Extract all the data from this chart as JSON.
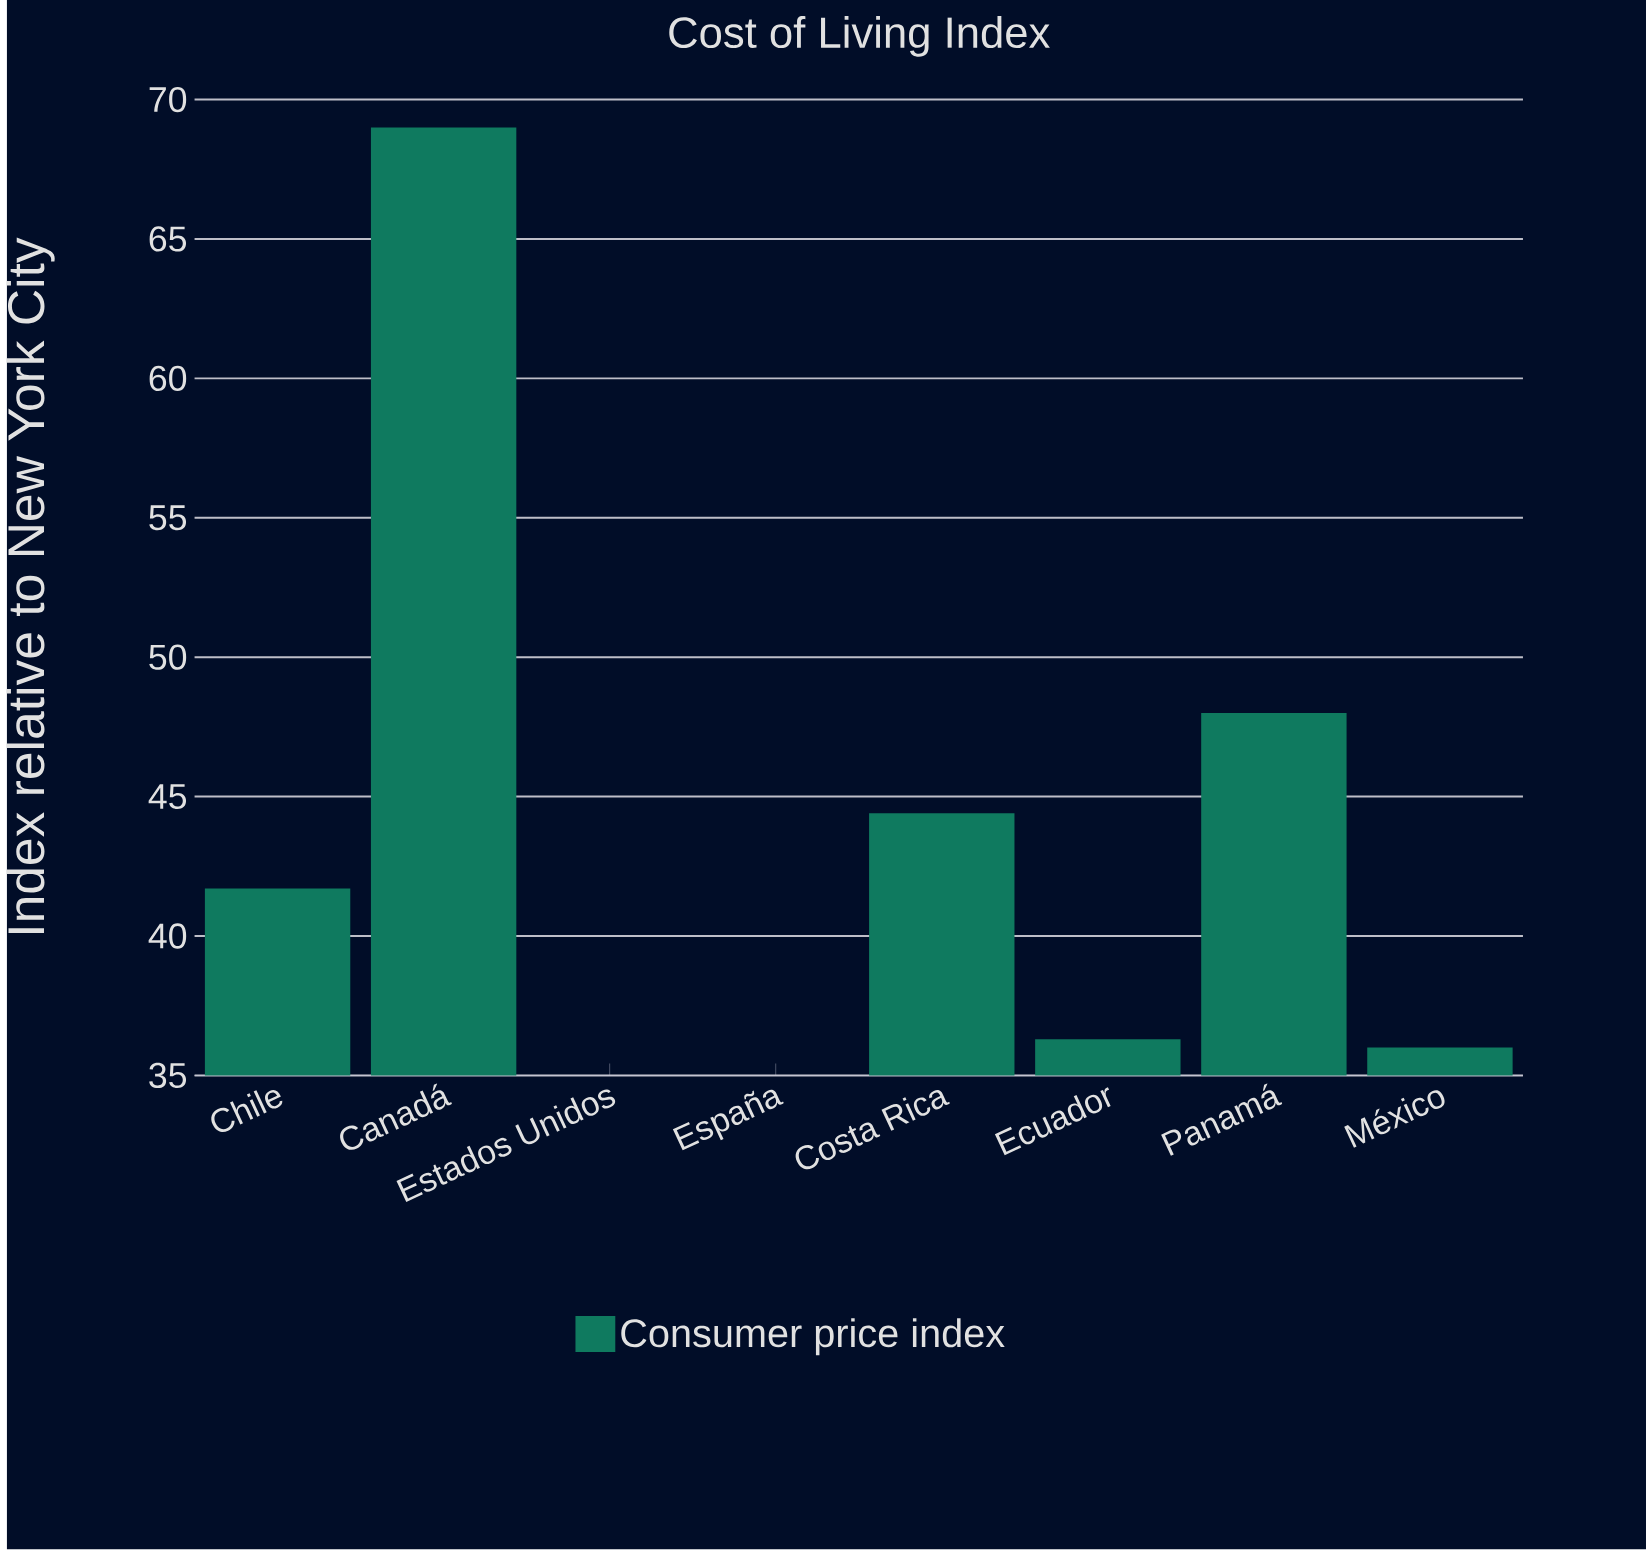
{
  "chart_data": {
    "type": "bar",
    "title": "Cost of Living Index",
    "ylabel": "Index relative to New York City",
    "categories": [
      "Chile",
      "Canadá",
      "Estados Unidos",
      "España",
      "Costa Rica",
      "Ecuador",
      "Panamá",
      "México"
    ],
    "series": [
      {
        "name": "Consumer price index",
        "color": "#0f7a5f",
        "values": [
          41.7,
          69.0,
          null,
          null,
          44.4,
          36.3,
          48.0,
          36.0
        ]
      }
    ],
    "ylim": [
      35,
      70
    ],
    "yticks": [
      35,
      40,
      45,
      50,
      55,
      60,
      65,
      70
    ],
    "grid": "y",
    "legend": "bottom"
  }
}
